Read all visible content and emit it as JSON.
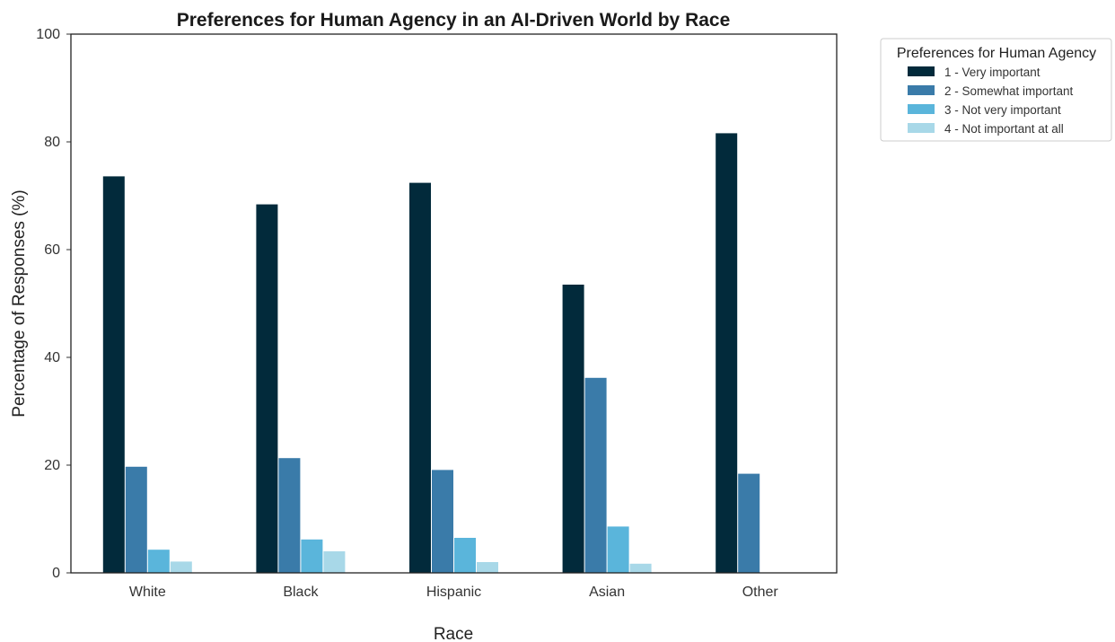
{
  "chart_data": {
    "type": "bar",
    "title": "Preferences for Human Agency in an AI-Driven World by Race",
    "xlabel": "Race",
    "ylabel": "Percentage of Responses (%)",
    "ylim": [
      0,
      100
    ],
    "yticks": [
      0,
      20,
      40,
      60,
      80,
      100
    ],
    "grid": false,
    "categories": [
      "White",
      "Black",
      "Hispanic",
      "Asian",
      "Other"
    ],
    "legend": {
      "title": "Preferences for Human Agency",
      "placement": "outside-top-right"
    },
    "series": [
      {
        "name": "1 - Very important",
        "color": "#022a3b",
        "values": [
          73.6,
          68.4,
          72.4,
          53.5,
          81.6
        ]
      },
      {
        "name": "2 - Somewhat important",
        "color": "#3a7ba9",
        "values": [
          19.7,
          21.3,
          19.1,
          36.2,
          18.4
        ]
      },
      {
        "name": "3 - Not very important",
        "color": "#5ab5db",
        "values": [
          4.3,
          6.2,
          6.5,
          8.6,
          0
        ]
      },
      {
        "name": "4 - Not important at all",
        "color": "#a8d8e8",
        "values": [
          2.1,
          4.0,
          2.0,
          1.7,
          0
        ]
      }
    ]
  }
}
